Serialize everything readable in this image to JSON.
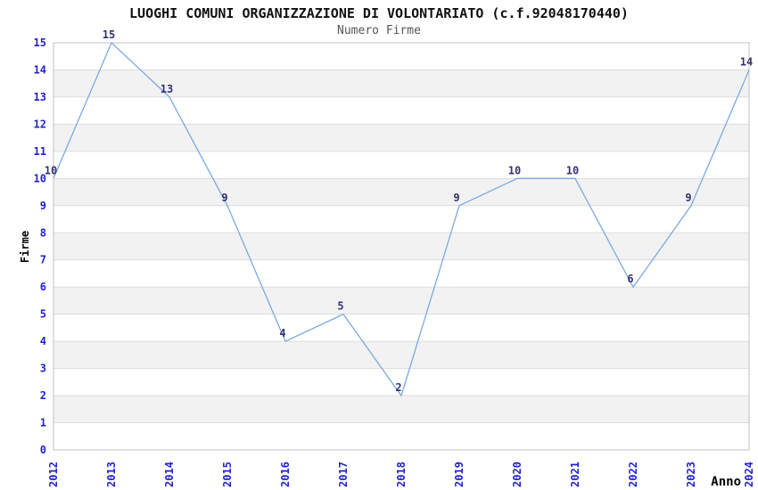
{
  "chart_data": {
    "type": "line",
    "title": "LUOGHI COMUNI ORGANIZZAZIONE DI VOLONTARIATO (c.f.92048170440)",
    "subtitle": "Numero Firme",
    "xlabel": "Anno",
    "ylabel": "Firme",
    "categories": [
      "2012",
      "2013",
      "2014",
      "2015",
      "2016",
      "2017",
      "2018",
      "2019",
      "2020",
      "2021",
      "2022",
      "2023",
      "2024"
    ],
    "values": [
      10,
      15,
      13,
      9,
      4,
      5,
      2,
      9,
      10,
      10,
      6,
      9,
      14
    ],
    "ylim": [
      0,
      15
    ],
    "y_tick_step": 1,
    "grid": true,
    "legend": "none",
    "band_pattern": "alternating 1-unit horizontal bands, gray on odd-to-even intervals",
    "colors": {
      "line": "#7aaae0",
      "band": "#f2f2f2",
      "grid": "#dcdcdc",
      "frame": "#c0c0c0",
      "tick": "#2222cc",
      "data_label": "#333370",
      "title": "#111111",
      "subtitle": "#555555",
      "background": "#ffffff"
    }
  }
}
